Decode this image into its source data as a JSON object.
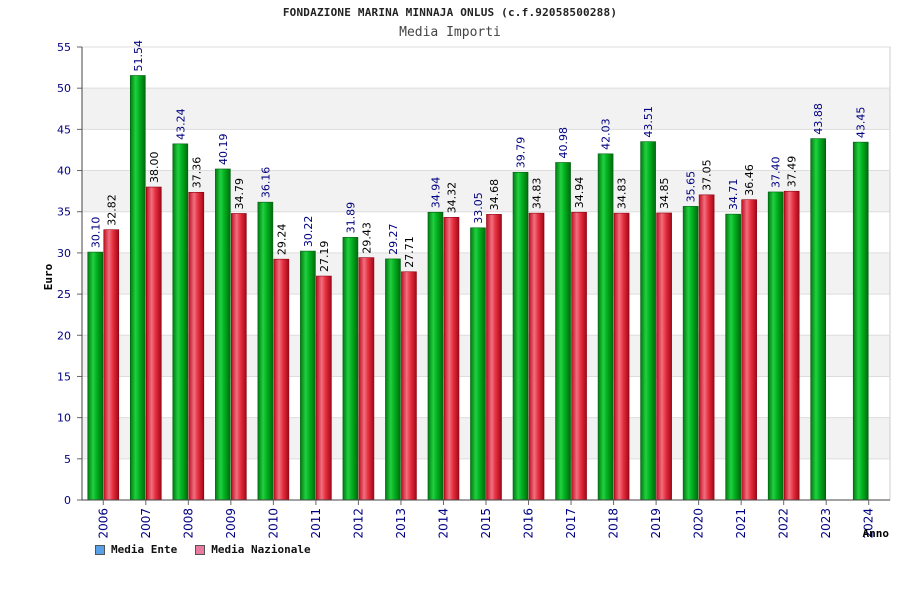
{
  "header": {
    "title": "FONDAZIONE MARINA MINNAJA ONLUS (c.f.92058500288)",
    "subtitle": "Media Importi"
  },
  "legend": {
    "items": [
      {
        "label": "Media Ente",
        "color": "#5aa0e8"
      },
      {
        "label": "Media Nazionale",
        "color": "#e87aa0"
      }
    ]
  },
  "colors": {
    "ente": "#00b020",
    "nazionale": "#e83040",
    "label_text": "#000080",
    "tick_text": "#000080"
  },
  "chart_data": {
    "type": "bar",
    "ylabel": "Euro",
    "xlabel": "Anno",
    "ylim": [
      0,
      55
    ],
    "yticks": [
      0,
      5,
      10,
      15,
      20,
      25,
      30,
      35,
      40,
      45,
      50,
      55
    ],
    "grid": true,
    "categories": [
      "2006",
      "2007",
      "2008",
      "2009",
      "2010",
      "2011",
      "2012",
      "2013",
      "2014",
      "2015",
      "2016",
      "2017",
      "2018",
      "2019",
      "2020",
      "2021",
      "2022",
      "2023",
      "2024"
    ],
    "series": [
      {
        "name": "Media Ente",
        "values": [
          30.1,
          51.54,
          43.24,
          40.19,
          36.16,
          30.22,
          31.89,
          29.27,
          34.94,
          33.05,
          39.79,
          40.98,
          42.03,
          43.51,
          35.65,
          34.71,
          37.4,
          43.88,
          43.45
        ],
        "labels": [
          "30.10",
          "51.54",
          "43.24",
          "40.19",
          "36.16",
          "30.22",
          "31.89",
          "29.27",
          "34.94",
          "33.05",
          "39.79",
          "40.98",
          "42.03",
          "43.51",
          "35.65",
          "34.71",
          "37.40",
          "43.88",
          "43.45"
        ]
      },
      {
        "name": "Media Nazionale",
        "values": [
          32.82,
          38.0,
          37.36,
          34.79,
          29.24,
          27.19,
          29.43,
          27.71,
          34.32,
          34.68,
          34.83,
          34.94,
          34.83,
          34.85,
          37.05,
          36.46,
          37.49,
          null,
          null
        ],
        "labels": [
          "32.82",
          "38.00",
          "37.36",
          "34.79",
          "29.24",
          "27.19",
          "29.43",
          "27.71",
          "34.32",
          "34.68",
          "34.83",
          "34.94",
          "34.83",
          "34.85",
          "37.05",
          "36.46",
          "37.49",
          null,
          null
        ]
      }
    ]
  }
}
